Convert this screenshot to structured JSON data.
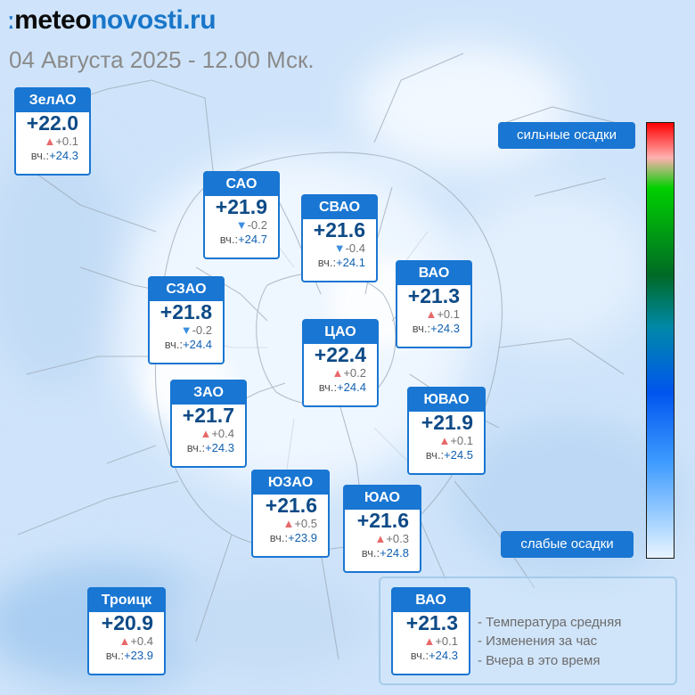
{
  "brand": {
    "mark": "ː",
    "part1": "meteo",
    "part2": "novosti.ru"
  },
  "datetime": "04 Августа 2025 - 12.00 Мск.",
  "yesterday_prefix": "вч.:",
  "colors": {
    "accent": "#1976d2",
    "temp_text": "#0d4a86",
    "rise": "#e8696b",
    "fall": "#3d8fe0"
  },
  "districts": [
    {
      "name": "ЗелАО",
      "temp": "+22.0",
      "dir": "up",
      "change": "+0.1",
      "yesterday": "+24.3"
    },
    {
      "name": "САО",
      "temp": "+21.9",
      "dir": "down",
      "change": "-0.2",
      "yesterday": "+24.7"
    },
    {
      "name": "СВАО",
      "temp": "+21.6",
      "dir": "down",
      "change": "-0.4",
      "yesterday": "+24.1"
    },
    {
      "name": "ВАО",
      "temp": "+21.3",
      "dir": "up",
      "change": "+0.1",
      "yesterday": "+24.3"
    },
    {
      "name": "СЗАО",
      "temp": "+21.8",
      "dir": "down",
      "change": "-0.2",
      "yesterday": "+24.4"
    },
    {
      "name": "ЦАО",
      "temp": "+22.4",
      "dir": "up",
      "change": "+0.2",
      "yesterday": "+24.4"
    },
    {
      "name": "ЗАО",
      "temp": "+21.7",
      "dir": "up",
      "change": "+0.4",
      "yesterday": "+24.3"
    },
    {
      "name": "ЮВАО",
      "temp": "+21.9",
      "dir": "up",
      "change": "+0.1",
      "yesterday": "+24.5"
    },
    {
      "name": "ЮЗАО",
      "temp": "+21.6",
      "dir": "up",
      "change": "+0.5",
      "yesterday": "+23.9"
    },
    {
      "name": "ЮАО",
      "temp": "+21.6",
      "dir": "up",
      "change": "+0.3",
      "yesterday": "+24.8"
    },
    {
      "name": "Троицк",
      "temp": "+20.9",
      "dir": "up",
      "change": "+0.4",
      "yesterday": "+23.9"
    }
  ],
  "precip_scale": {
    "top_label": "сильные осадки",
    "bottom_label": "слабые осадки"
  },
  "legend": {
    "sample": {
      "name": "ВАО",
      "temp": "+21.3",
      "dir": "up",
      "change": "+0.1",
      "yesterday": "+24.3"
    },
    "items": [
      "- Температура средняя",
      "- Изменения за час",
      "- Вчера в это время"
    ]
  }
}
